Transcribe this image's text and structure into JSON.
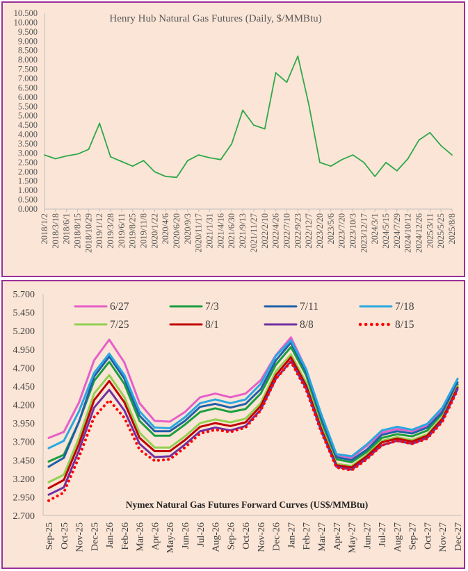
{
  "chart_data": [
    {
      "type": "line",
      "title": "Henry Hub Natural Gas Futures (Daily, $/MMBtu)",
      "ylim": [
        0,
        10.5
      ],
      "yticks": [
        "0.000",
        "0.500",
        "1.000",
        "1.500",
        "2.000",
        "2.500",
        "3.000",
        "3.500",
        "4.000",
        "4.500",
        "5.000",
        "5.500",
        "6.000",
        "6.500",
        "7.000",
        "7.500",
        "8.000",
        "8.500",
        "9.000",
        "9.500",
        "10.000",
        "10.500"
      ],
      "categories": [
        "2018/1/2",
        "2018/3/18",
        "2018/6/1",
        "2018/8/15",
        "2018/10/29",
        "2019/1/12",
        "2019/3/28",
        "2019/6/11",
        "2019/8/25",
        "2019/11/8",
        "2020/1/22",
        "2020/4/6",
        "2020/6/20",
        "2020/9/3",
        "2020/11/17",
        "2021/1/31",
        "2021/4/16",
        "2021/6/30",
        "2021/9/13",
        "2021/11/27",
        "2022/2/10",
        "2022/4/26",
        "2022/7/10",
        "2022/9/23",
        "2022/12/7",
        "2023/2/20",
        "2023/5/6",
        "2023/7/20",
        "2023/10/3",
        "2023/12/17",
        "2024/3/1",
        "2024/5/15",
        "2024/7/29",
        "2024/10/12",
        "2024/12/26",
        "2025/3/11",
        "2025/5/25",
        "2025/8/8"
      ],
      "series": [
        {
          "color": "#2ea84a",
          "values": [
            2.9,
            2.7,
            2.85,
            2.95,
            3.2,
            4.6,
            2.8,
            2.55,
            2.3,
            2.6,
            2.0,
            1.75,
            1.7,
            2.6,
            2.9,
            2.75,
            2.65,
            3.5,
            5.3,
            4.5,
            4.3,
            7.3,
            6.8,
            8.2,
            5.6,
            2.5,
            2.3,
            2.65,
            2.9,
            2.5,
            1.75,
            2.5,
            2.05,
            2.7,
            3.7,
            4.1,
            3.4,
            2.9
          ]
        }
      ]
    },
    {
      "type": "line",
      "title": "Nymex  Natural  Gas  Futures  Forward   Curves  (US$/MMBtu)",
      "ylim": [
        2.7,
        5.7
      ],
      "yticks": [
        "2.700",
        "2.950",
        "3.200",
        "3.450",
        "3.700",
        "3.950",
        "4.200",
        "4.450",
        "4.700",
        "4.950",
        "5.200",
        "5.450",
        "5.700"
      ],
      "categories": [
        "Sep-25",
        "Oct-25",
        "Nov-25",
        "Dec-25",
        "Jan-26",
        "Feb-26",
        "Mar-26",
        "Apr-26",
        "May-26",
        "Jun-26",
        "Jul-26",
        "Aug-26",
        "Sep-26",
        "Oct-26",
        "Nov-26",
        "Dec-26",
        "Jan-27",
        "Feb-27",
        "Mar-27",
        "Apr-27",
        "May-27",
        "Jun-27",
        "Jul-27",
        "Aug-27",
        "Sep-27",
        "Oct-27",
        "Nov-27",
        "Dec-27"
      ],
      "series": [
        {
          "name": "6/27",
          "color": "#e55fc9",
          "dash": false,
          "values": [
            3.75,
            3.83,
            4.23,
            4.8,
            5.08,
            4.77,
            4.22,
            3.98,
            3.97,
            4.1,
            4.3,
            4.35,
            4.3,
            4.35,
            4.53,
            4.87,
            5.11,
            4.68,
            4.04,
            3.52,
            3.48,
            3.64,
            3.82,
            3.87,
            3.84,
            3.91,
            4.13,
            4.55
          ]
        },
        {
          "name": "7/3",
          "color": "#1a9e3e",
          "dash": false,
          "values": [
            3.43,
            3.52,
            3.97,
            4.52,
            4.78,
            4.48,
            3.98,
            3.78,
            3.78,
            3.93,
            4.1,
            4.15,
            4.1,
            4.14,
            4.35,
            4.74,
            4.98,
            4.6,
            3.98,
            3.46,
            3.42,
            3.56,
            3.75,
            3.8,
            3.77,
            3.85,
            4.08,
            4.47
          ]
        },
        {
          "name": "7/11",
          "color": "#1f5fa8",
          "dash": false,
          "values": [
            3.36,
            3.48,
            3.97,
            4.58,
            4.85,
            4.55,
            4.05,
            3.84,
            3.84,
            3.98,
            4.17,
            4.21,
            4.16,
            4.21,
            4.41,
            4.8,
            5.04,
            4.64,
            4.02,
            3.49,
            3.45,
            3.59,
            3.79,
            3.84,
            3.81,
            3.89,
            4.1,
            4.5
          ]
        },
        {
          "name": "7/18",
          "color": "#29a8e0",
          "dash": false,
          "values": [
            3.61,
            3.71,
            4.11,
            4.63,
            4.89,
            4.6,
            4.11,
            3.89,
            3.88,
            4.03,
            4.22,
            4.27,
            4.22,
            4.27,
            4.48,
            4.86,
            5.07,
            4.68,
            4.07,
            3.53,
            3.5,
            3.66,
            3.85,
            3.9,
            3.86,
            3.94,
            4.16,
            4.55
          ]
        },
        {
          "name": "7/25",
          "color": "#92d050",
          "dash": false,
          "values": [
            3.15,
            3.25,
            3.75,
            4.35,
            4.6,
            4.3,
            3.82,
            3.62,
            3.62,
            3.77,
            3.95,
            4.0,
            3.96,
            4.01,
            4.22,
            4.65,
            4.88,
            4.5,
            3.9,
            3.4,
            3.37,
            3.52,
            3.71,
            3.76,
            3.72,
            3.8,
            4.03,
            4.45
          ]
        },
        {
          "name": "8/1",
          "color": "#c00000",
          "dash": false,
          "values": [
            3.07,
            3.18,
            3.67,
            4.26,
            4.52,
            4.23,
            3.75,
            3.57,
            3.57,
            3.72,
            3.9,
            3.95,
            3.91,
            3.96,
            4.18,
            4.6,
            4.84,
            4.46,
            3.87,
            3.38,
            3.35,
            3.5,
            3.69,
            3.74,
            3.7,
            3.78,
            4.01,
            4.43
          ]
        },
        {
          "name": "8/8",
          "color": "#7030a0",
          "dash": false,
          "values": [
            2.98,
            3.08,
            3.58,
            4.16,
            4.4,
            4.12,
            3.67,
            3.49,
            3.5,
            3.66,
            3.84,
            3.89,
            3.85,
            3.91,
            4.13,
            4.55,
            4.79,
            4.42,
            3.84,
            3.36,
            3.32,
            3.47,
            3.65,
            3.71,
            3.67,
            3.75,
            3.98,
            4.41
          ]
        },
        {
          "name": "8/15",
          "color": "#ff0000",
          "dash": true,
          "values": [
            2.9,
            3.01,
            3.49,
            4.03,
            4.26,
            4.02,
            3.59,
            3.44,
            3.46,
            3.62,
            3.81,
            3.86,
            3.83,
            3.89,
            4.12,
            4.55,
            4.78,
            4.4,
            3.83,
            3.35,
            3.31,
            3.46,
            3.65,
            3.71,
            3.67,
            3.74,
            3.97,
            4.4
          ]
        }
      ]
    }
  ]
}
